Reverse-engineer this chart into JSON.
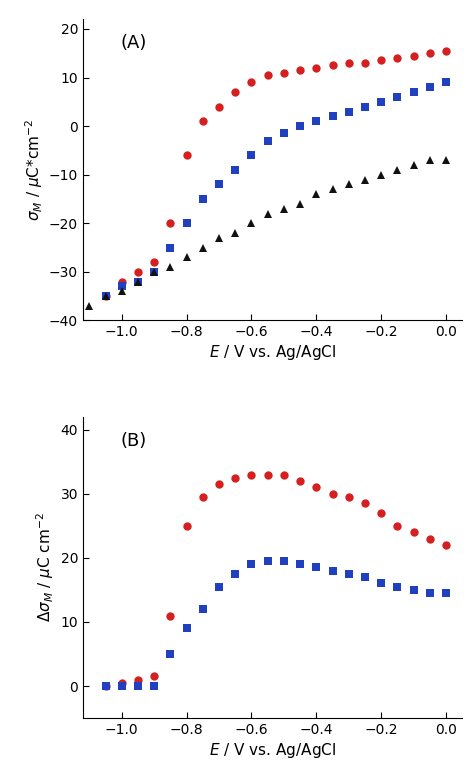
{
  "panel_A": {
    "label": "(A)",
    "xlim": [
      -1.12,
      0.05
    ],
    "ylim": [
      -40,
      22
    ],
    "xticks": [
      -1.0,
      -0.8,
      -0.6,
      -0.4,
      -0.2,
      0.0
    ],
    "yticks": [
      -40,
      -30,
      -20,
      -10,
      0,
      10,
      20
    ],
    "red_circles": {
      "x": [
        -1.05,
        -1.0,
        -0.95,
        -0.9,
        -0.85,
        -0.8,
        -0.75,
        -0.7,
        -0.65,
        -0.6,
        -0.55,
        -0.5,
        -0.45,
        -0.4,
        -0.35,
        -0.3,
        -0.25,
        -0.2,
        -0.15,
        -0.1,
        -0.05,
        0.0
      ],
      "y": [
        -35,
        -32,
        -30,
        -28,
        -20,
        -6,
        1,
        4,
        7,
        9,
        10.5,
        11,
        11.5,
        12,
        12.5,
        13,
        13,
        13.5,
        14,
        14.5,
        15,
        15.5
      ]
    },
    "blue_squares": {
      "x": [
        -1.05,
        -1.0,
        -0.95,
        -0.9,
        -0.85,
        -0.8,
        -0.75,
        -0.7,
        -0.65,
        -0.6,
        -0.55,
        -0.5,
        -0.45,
        -0.4,
        -0.35,
        -0.3,
        -0.25,
        -0.2,
        -0.15,
        -0.1,
        -0.05,
        0.0
      ],
      "y": [
        -35,
        -33,
        -32,
        -30,
        -25,
        -20,
        -15,
        -12,
        -9,
        -6,
        -3,
        -1.5,
        0,
        1,
        2,
        3,
        4,
        5,
        6,
        7,
        8,
        9
      ]
    },
    "black_triangles": {
      "x": [
        -1.1,
        -1.05,
        -1.0,
        -0.95,
        -0.9,
        -0.85,
        -0.8,
        -0.75,
        -0.7,
        -0.65,
        -0.6,
        -0.55,
        -0.5,
        -0.45,
        -0.4,
        -0.35,
        -0.3,
        -0.25,
        -0.2,
        -0.15,
        -0.1,
        -0.05,
        0.0
      ],
      "y": [
        -37,
        -35,
        -34,
        -32,
        -30,
        -29,
        -27,
        -25,
        -23,
        -22,
        -20,
        -18,
        -17,
        -16,
        -14,
        -13,
        -12,
        -11,
        -10,
        -9,
        -8,
        -7,
        -7
      ]
    }
  },
  "panel_B": {
    "label": "(B)",
    "xlim": [
      -1.12,
      0.05
    ],
    "ylim": [
      -5,
      42
    ],
    "xticks": [
      -1.0,
      -0.8,
      -0.6,
      -0.4,
      -0.2,
      0.0
    ],
    "yticks": [
      0,
      10,
      20,
      30,
      40
    ],
    "red_circles": {
      "x": [
        -1.05,
        -1.0,
        -0.95,
        -0.9,
        -0.85,
        -0.8,
        -0.75,
        -0.7,
        -0.65,
        -0.6,
        -0.55,
        -0.5,
        -0.45,
        -0.4,
        -0.35,
        -0.3,
        -0.25,
        -0.2,
        -0.15,
        -0.1,
        -0.05,
        0.0
      ],
      "y": [
        0,
        0.5,
        1,
        1.5,
        11,
        25,
        29.5,
        31.5,
        32.5,
        33,
        33,
        33,
        32,
        31,
        30,
        29.5,
        28.5,
        27,
        25,
        24,
        23,
        22
      ]
    },
    "blue_squares": {
      "x": [
        -1.05,
        -1.0,
        -0.95,
        -0.9,
        -0.85,
        -0.8,
        -0.75,
        -0.7,
        -0.65,
        -0.6,
        -0.55,
        -0.5,
        -0.45,
        -0.4,
        -0.35,
        -0.3,
        -0.25,
        -0.2,
        -0.15,
        -0.1,
        -0.05,
        0.0
      ],
      "y": [
        0,
        0,
        0,
        0,
        5,
        9,
        12,
        15.5,
        17.5,
        19,
        19.5,
        19.5,
        19,
        18.5,
        18,
        17.5,
        17,
        16,
        15.5,
        15,
        14.5,
        14.5
      ]
    }
  },
  "colors": {
    "red": "#d42020",
    "blue": "#2040c0",
    "black": "#111111"
  },
  "marker_size": 6,
  "font_size_label": 11,
  "font_size_tick": 10,
  "font_size_panel": 13
}
